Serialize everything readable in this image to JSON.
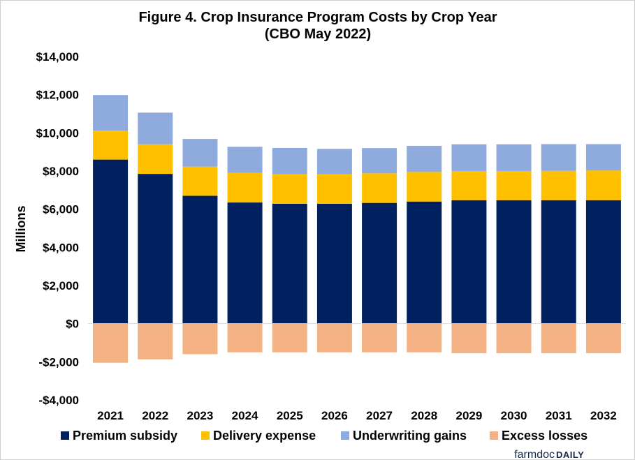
{
  "chart_data": {
    "type": "bar",
    "stacked": true,
    "title": [
      "Figure  4. Crop  Insurance  Program  Costs  by  Crop  Year",
      "(CBO  May  2022)"
    ],
    "xlabel": "",
    "ylabel": "Millions",
    "ylim": [
      -4000,
      14000
    ],
    "yticks": [
      -4000,
      -2000,
      0,
      2000,
      4000,
      6000,
      8000,
      10000,
      12000,
      14000
    ],
    "ytick_labels": [
      "-$4,000",
      "-$2,000",
      "$0",
      "$2,000",
      "$4,000",
      "$6,000",
      "$8,000",
      "$10,000",
      "$12,000",
      "$14,000"
    ],
    "grid": false,
    "legend_position": "bottom",
    "categories": [
      "2021",
      "2022",
      "2023",
      "2024",
      "2025",
      "2026",
      "2027",
      "2028",
      "2029",
      "2030",
      "2031",
      "2032"
    ],
    "series": [
      {
        "name": "Premium subsidy",
        "color": "#002060",
        "values": [
          8600,
          7850,
          6700,
          6350,
          6280,
          6280,
          6330,
          6400,
          6470,
          6470,
          6470,
          6470
        ]
      },
      {
        "name": "Delivery expense",
        "color": "#ffc000",
        "values": [
          1520,
          1550,
          1530,
          1550,
          1550,
          1550,
          1550,
          1550,
          1520,
          1520,
          1540,
          1560
        ]
      },
      {
        "name": "Underwriting gains",
        "color": "#8faadc",
        "values": [
          1860,
          1660,
          1450,
          1370,
          1380,
          1330,
          1320,
          1370,
          1410,
          1410,
          1400,
          1380
        ]
      },
      {
        "name": "Excess losses",
        "color": "#f4b183",
        "values": [
          -2050,
          -1870,
          -1600,
          -1500,
          -1500,
          -1500,
          -1500,
          -1500,
          -1550,
          -1550,
          -1550,
          -1550
        ]
      }
    ]
  },
  "branding": {
    "farmdoc": "farmdoc",
    "daily": "DAILY"
  }
}
